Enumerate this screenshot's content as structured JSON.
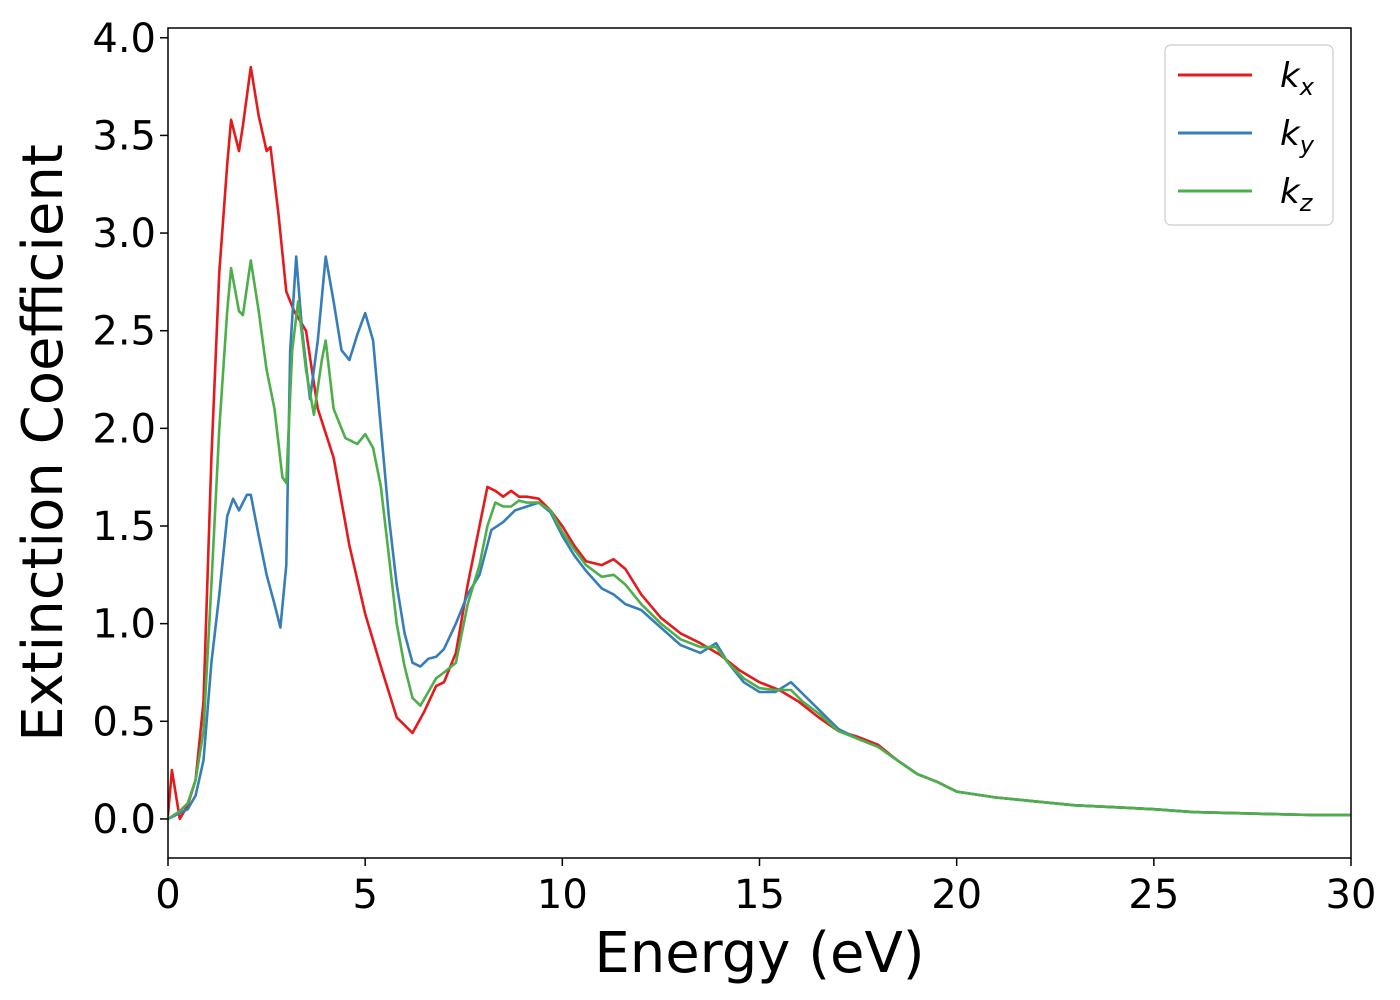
{
  "chart_data": {
    "type": "line",
    "xlabel": "Energy (eV)",
    "ylabel": "Extinction Coefficient",
    "xlim": [
      0,
      30
    ],
    "ylim": [
      -0.2,
      4.05
    ],
    "xticks": [
      0,
      5,
      10,
      15,
      20,
      25,
      30
    ],
    "xtick_labels": [
      "0",
      "5",
      "10",
      "15",
      "20",
      "25",
      "30"
    ],
    "yticks": [
      0.0,
      0.5,
      1.0,
      1.5,
      2.0,
      2.5,
      3.0,
      3.5,
      4.0
    ],
    "ytick_labels": [
      "0.0",
      "0.5",
      "1.0",
      "1.5",
      "2.0",
      "2.5",
      "3.0",
      "3.5",
      "4.0"
    ],
    "grid": false,
    "legend_position": "top-right",
    "series": [
      {
        "name": "k",
        "subscript": "x",
        "color": "#e41a1c",
        "x": [
          0,
          0.1,
          0.3,
          0.5,
          0.7,
          0.9,
          1.1,
          1.3,
          1.5,
          1.6,
          1.8,
          1.9,
          2.1,
          2.3,
          2.5,
          2.6,
          2.8,
          3.0,
          3.2,
          3.5,
          3.8,
          4.2,
          4.6,
          5.0,
          5.4,
          5.8,
          6.0,
          6.2,
          6.5,
          6.8,
          7.0,
          7.3,
          7.6,
          7.9,
          8.1,
          8.3,
          8.5,
          8.7,
          8.9,
          9.1,
          9.4,
          9.7,
          10.0,
          10.3,
          10.6,
          11.0,
          11.3,
          11.6,
          12.0,
          12.5,
          13.0,
          13.5,
          14.0,
          14.5,
          15.0,
          15.5,
          16.0,
          16.5,
          17.0,
          17.5,
          18.0,
          18.5,
          19.0,
          19.5,
          20.0,
          21.0,
          22.0,
          23.0,
          24.0,
          25.0,
          26.0,
          27.0,
          28.0,
          29.0,
          30.0
        ],
        "values": [
          0.02,
          0.25,
          0.0,
          0.07,
          0.2,
          0.6,
          1.85,
          2.8,
          3.35,
          3.58,
          3.42,
          3.55,
          3.85,
          3.6,
          3.42,
          3.44,
          3.1,
          2.7,
          2.6,
          2.5,
          2.1,
          1.85,
          1.4,
          1.05,
          0.78,
          0.52,
          0.48,
          0.44,
          0.55,
          0.68,
          0.7,
          0.85,
          1.2,
          1.5,
          1.7,
          1.68,
          1.65,
          1.68,
          1.65,
          1.65,
          1.64,
          1.58,
          1.5,
          1.4,
          1.32,
          1.3,
          1.33,
          1.28,
          1.15,
          1.03,
          0.95,
          0.9,
          0.84,
          0.76,
          0.7,
          0.66,
          0.6,
          0.52,
          0.45,
          0.42,
          0.38,
          0.3,
          0.23,
          0.19,
          0.14,
          0.11,
          0.09,
          0.07,
          0.06,
          0.05,
          0.035,
          0.03,
          0.025,
          0.02,
          0.02
        ]
      },
      {
        "name": "k",
        "subscript": "y",
        "color": "#377eb8",
        "x": [
          0,
          0.3,
          0.5,
          0.7,
          0.9,
          1.1,
          1.3,
          1.5,
          1.65,
          1.8,
          2.0,
          2.1,
          2.3,
          2.5,
          2.7,
          2.85,
          3.0,
          3.1,
          3.25,
          3.4,
          3.6,
          3.8,
          4.0,
          4.2,
          4.4,
          4.6,
          4.8,
          5.0,
          5.2,
          5.4,
          5.6,
          5.8,
          6.0,
          6.2,
          6.4,
          6.6,
          6.8,
          7.0,
          7.3,
          7.6,
          7.9,
          8.2,
          8.5,
          8.8,
          9.1,
          9.4,
          9.7,
          10.0,
          10.3,
          10.6,
          11.0,
          11.3,
          11.6,
          12.0,
          12.5,
          13.0,
          13.5,
          13.9,
          14.2,
          14.6,
          15.0,
          15.4,
          15.8,
          16.1,
          16.5,
          17.0,
          17.5,
          18.0,
          18.5,
          19.0,
          19.5,
          20.0,
          21.0,
          22.0,
          23.0,
          24.0,
          25.0,
          26.0,
          27.0,
          28.0,
          29.0,
          30.0
        ],
        "values": [
          0.0,
          0.03,
          0.05,
          0.12,
          0.3,
          0.8,
          1.15,
          1.55,
          1.64,
          1.58,
          1.66,
          1.66,
          1.45,
          1.25,
          1.1,
          0.98,
          1.3,
          2.4,
          2.88,
          2.5,
          2.15,
          2.45,
          2.88,
          2.65,
          2.4,
          2.35,
          2.48,
          2.59,
          2.45,
          2.0,
          1.55,
          1.2,
          0.95,
          0.8,
          0.78,
          0.82,
          0.83,
          0.87,
          1.0,
          1.15,
          1.25,
          1.48,
          1.52,
          1.58,
          1.6,
          1.62,
          1.57,
          1.45,
          1.35,
          1.27,
          1.18,
          1.15,
          1.1,
          1.07,
          0.98,
          0.89,
          0.85,
          0.9,
          0.8,
          0.7,
          0.65,
          0.65,
          0.7,
          0.64,
          0.56,
          0.46,
          0.41,
          0.37,
          0.3,
          0.23,
          0.19,
          0.14,
          0.11,
          0.09,
          0.07,
          0.06,
          0.05,
          0.035,
          0.03,
          0.025,
          0.02,
          0.02
        ]
      },
      {
        "name": "k",
        "subscript": "z",
        "color": "#4daf4a",
        "x": [
          0,
          0.3,
          0.5,
          0.7,
          0.9,
          1.1,
          1.3,
          1.5,
          1.6,
          1.8,
          1.9,
          2.1,
          2.3,
          2.5,
          2.7,
          2.9,
          3.0,
          3.15,
          3.3,
          3.5,
          3.7,
          3.9,
          4.0,
          4.2,
          4.5,
          4.8,
          5.0,
          5.2,
          5.4,
          5.6,
          5.8,
          6.0,
          6.2,
          6.4,
          6.6,
          6.8,
          7.0,
          7.3,
          7.6,
          7.9,
          8.1,
          8.3,
          8.5,
          8.7,
          8.9,
          9.1,
          9.4,
          9.7,
          10.0,
          10.3,
          10.6,
          11.0,
          11.3,
          11.6,
          12.0,
          12.5,
          13.0,
          13.5,
          13.9,
          14.2,
          14.6,
          15.0,
          15.4,
          15.8,
          16.1,
          16.5,
          17.0,
          17.5,
          18.0,
          18.5,
          19.0,
          19.5,
          20.0,
          21.0,
          22.0,
          23.0,
          24.0,
          25.0,
          26.0,
          27.0,
          28.0,
          29.0,
          30.0
        ],
        "values": [
          0.0,
          0.04,
          0.08,
          0.2,
          0.45,
          1.2,
          2.0,
          2.6,
          2.82,
          2.6,
          2.58,
          2.86,
          2.6,
          2.3,
          2.1,
          1.75,
          1.72,
          2.4,
          2.65,
          2.3,
          2.07,
          2.35,
          2.45,
          2.1,
          1.95,
          1.92,
          1.97,
          1.9,
          1.7,
          1.35,
          1.0,
          0.78,
          0.62,
          0.58,
          0.65,
          0.72,
          0.75,
          0.8,
          1.1,
          1.3,
          1.5,
          1.62,
          1.6,
          1.6,
          1.63,
          1.62,
          1.62,
          1.58,
          1.47,
          1.38,
          1.3,
          1.24,
          1.25,
          1.2,
          1.1,
          1.0,
          0.92,
          0.88,
          0.88,
          0.8,
          0.72,
          0.67,
          0.66,
          0.66,
          0.6,
          0.54,
          0.45,
          0.41,
          0.37,
          0.3,
          0.23,
          0.19,
          0.14,
          0.11,
          0.09,
          0.07,
          0.06,
          0.05,
          0.035,
          0.03,
          0.025,
          0.02,
          0.02
        ]
      }
    ]
  }
}
